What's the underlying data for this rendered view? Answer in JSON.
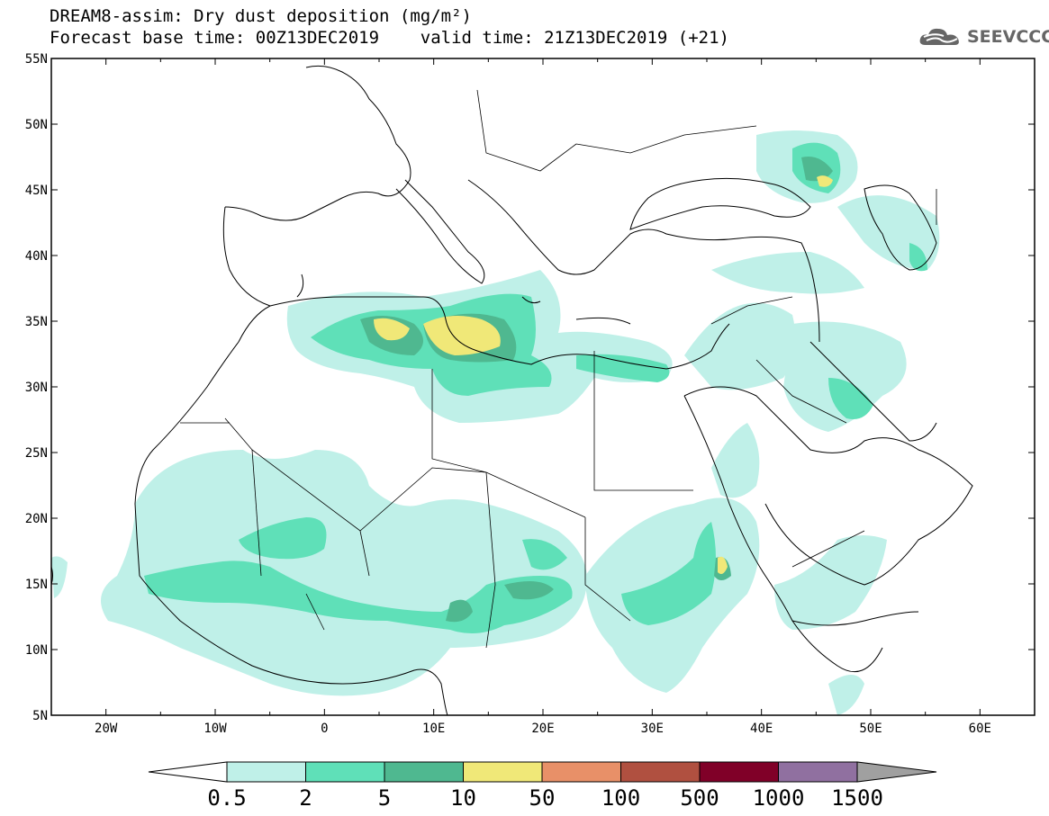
{
  "title_line1": "DREAM8-assim: Dry dust deposition (mg/m²)",
  "title_line2": "Forecast base time: 00Z13DEC2019    valid time: 21Z13DEC2019 (+21)",
  "logo_text": "SEEVCCC",
  "map": {
    "lon_range": [
      -25,
      65
    ],
    "lat_range": [
      5,
      55
    ],
    "lat_ticks": [
      "55N",
      "50N",
      "45N",
      "40N",
      "35N",
      "30N",
      "25N",
      "20N",
      "15N",
      "10N",
      "5N"
    ],
    "lon_ticks": [
      "20W",
      "10W",
      "0",
      "10E",
      "20E",
      "30E",
      "40E",
      "50E",
      "60E"
    ]
  },
  "colorbar": {
    "labels": [
      "0.5",
      "2",
      "5",
      "10",
      "50",
      "100",
      "500",
      "1000",
      "1500"
    ],
    "colors": [
      "#bff0e8",
      "#5fe0b8",
      "#4fb890",
      "#f0e878",
      "#e89068",
      "#b05040",
      "#800028",
      "#9070a0",
      "#a0a0a0"
    ]
  }
}
